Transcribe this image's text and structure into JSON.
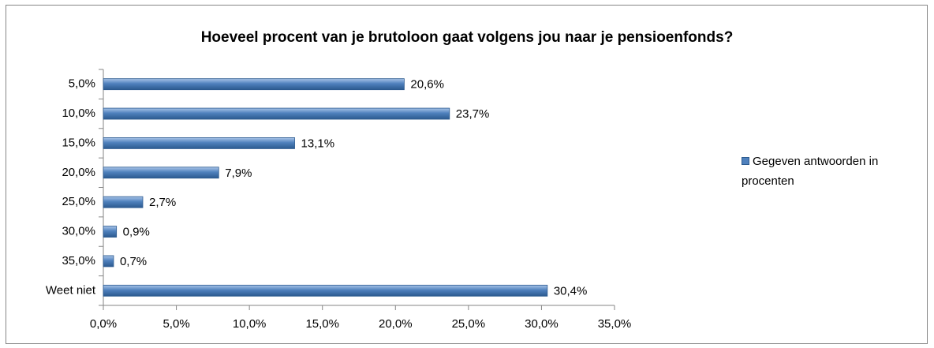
{
  "chart_data": {
    "type": "bar",
    "orientation": "horizontal",
    "title": "Hoeveel procent van je brutoloon gaat volgens jou naar je pensioenfonds?",
    "categories": [
      "5,0%",
      "10,0%",
      "15,0%",
      "20,0%",
      "25,0%",
      "30,0%",
      "35,0%",
      "Weet niet"
    ],
    "series": [
      {
        "name": "Gegeven antwoorden in procenten",
        "color": "#4f81bd",
        "values": [
          20.6,
          23.7,
          13.1,
          7.9,
          2.7,
          0.9,
          0.7,
          30.4
        ],
        "value_labels": [
          "20,6%",
          "23,7%",
          "13,1%",
          "7,9%",
          "2,7%",
          "0,9%",
          "0,7%",
          "30,4%"
        ]
      }
    ],
    "xlim": [
      0,
      35
    ],
    "xticks": [
      {
        "value": 0,
        "label": "0,0%"
      },
      {
        "value": 5,
        "label": "5,0%"
      },
      {
        "value": 10,
        "label": "10,0%"
      },
      {
        "value": 15,
        "label": "15,0%"
      },
      {
        "value": 20,
        "label": "20,0%"
      },
      {
        "value": 25,
        "label": "25,0%"
      },
      {
        "value": 30,
        "label": "30,0%"
      },
      {
        "value": 35,
        "label": "35,0%"
      }
    ],
    "grid": false,
    "legend": "right"
  }
}
